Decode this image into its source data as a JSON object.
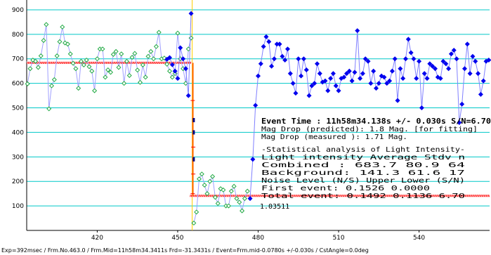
{
  "chart_data": {
    "type": "scatter",
    "title": "",
    "xlabel": "",
    "ylabel": "",
    "xlim": [
      393.7,
      566.3
    ],
    "ylim": [
      0,
      940
    ],
    "x_ticks": [
      420,
      450,
      480,
      510,
      540
    ],
    "y_ticks": [
      100,
      200,
      300,
      400,
      500,
      600,
      700,
      800,
      900
    ],
    "grid": true,
    "event_x": 455.4,
    "colors": {
      "green": "#22aa44",
      "green_line": "#a0a0ff",
      "blue": "#0000ee",
      "blue_line": "#8080ff",
      "grid": "#00c8c8",
      "fit": "#ff4040",
      "event_line": "#ffcc00",
      "drop": "#ff6600"
    },
    "series": [
      {
        "marker": "green-diamond",
        "x": [
          394,
          395,
          396,
          397,
          398,
          399,
          400,
          401,
          402,
          403,
          404,
          405,
          406,
          407,
          408,
          409,
          410,
          411,
          412,
          413,
          414,
          415,
          416,
          417,
          418,
          419,
          420,
          421,
          422,
          423,
          424,
          425,
          426,
          427,
          428,
          429,
          430,
          431,
          432,
          433,
          434,
          435,
          436,
          437,
          438,
          439,
          440,
          441,
          442,
          443,
          444,
          445,
          446,
          447,
          448,
          449,
          450,
          451,
          452,
          453,
          454,
          455
        ],
        "y": [
          598,
          660,
          695,
          690,
          665,
          712,
          775,
          840,
          496,
          590,
          615,
          712,
          770,
          830,
          765,
          760,
          720,
          682,
          660,
          580,
          690,
          675,
          695,
          668,
          650,
          570,
          700,
          740,
          740,
          625,
          655,
          645,
          718,
          730,
          665,
          720,
          600,
          690,
          632,
          706,
          722,
          654,
          604,
          675,
          625,
          710,
          730,
          700,
          750,
          808,
          700,
          703,
          678,
          650,
          625,
          640,
          805,
          700,
          660,
          600,
          740,
          785
        ]
      },
      {
        "marker": "blue-diamond",
        "x": [
          446,
          447,
          448,
          449,
          450,
          451,
          452,
          453,
          454,
          455
        ],
        "y": [
          698,
          705,
          676,
          650,
          620,
          745,
          700,
          660,
          550,
          885
        ]
      },
      {
        "marker": "green-diamond",
        "x": [
          456,
          457,
          458,
          459,
          460,
          461,
          462,
          463,
          464,
          465,
          466,
          467,
          468,
          469,
          470,
          471,
          472,
          473,
          474,
          475,
          476
        ],
        "y": [
          30,
          75,
          210,
          230,
          185,
          150,
          200,
          220,
          135,
          110,
          170,
          165,
          100,
          100,
          160,
          180,
          130,
          115,
          80,
          130,
          160
        ]
      },
      {
        "marker": "blue-diamond",
        "x": [
          477,
          478,
          479,
          480,
          481,
          482,
          483,
          484,
          485,
          486,
          487,
          488,
          489,
          490,
          491,
          492,
          493,
          494,
          495,
          496,
          497,
          498,
          499,
          500,
          501,
          502,
          503,
          504,
          505,
          506,
          507,
          508,
          509,
          510,
          511,
          512,
          513,
          514,
          515,
          516,
          517,
          518,
          519,
          520,
          521,
          522,
          523,
          524,
          525,
          526,
          527,
          528,
          529,
          530,
          531,
          532,
          533,
          534,
          535,
          536,
          537,
          538,
          539,
          540,
          541,
          542,
          543,
          544,
          545,
          546,
          547,
          548,
          549,
          550,
          551,
          552,
          553,
          554,
          555,
          556,
          557,
          558,
          559,
          560,
          561,
          562,
          563,
          564,
          565,
          566
        ],
        "y": [
          130,
          290,
          510,
          630,
          680,
          750,
          790,
          770,
          670,
          700,
          760,
          760,
          710,
          695,
          740,
          640,
          600,
          560,
          700,
          630,
          700,
          655,
          550,
          590,
          600,
          680,
          640,
          605,
          610,
          570,
          620,
          640,
          590,
          570,
          620,
          625,
          640,
          650,
          610,
          645,
          815,
          620,
          640,
          700,
          690,
          600,
          650,
          580,
          600,
          630,
          625,
          600,
          610,
          650,
          700,
          530,
          660,
          620,
          700,
          780,
          725,
          700,
          620,
          690,
          500,
          640,
          620,
          680,
          670,
          660,
          625,
          620,
          690,
          680,
          660,
          720,
          735,
          700,
          440,
          515,
          660,
          760,
          640,
          710,
          690,
          640,
          555,
          610,
          690,
          695
        ]
      }
    ],
    "fit_levels": {
      "combined": 683.7,
      "background": 141.3,
      "pre_event_end": 455,
      "post_event_start": 456
    },
    "red_drop_markers": [
      {
        "x": 455.6,
        "y": 530
      },
      {
        "x": 455.8,
        "y": 340
      },
      {
        "x": 455.8,
        "y": 230
      },
      {
        "x": 455.6,
        "y": 150
      }
    ],
    "blue_drop_markers": [
      {
        "x": 456.0,
        "y": 450
      },
      {
        "x": 456.0,
        "y": 400
      },
      {
        "x": 456.0,
        "y": 290
      }
    ]
  },
  "info": {
    "event_time": "Event Time : 11h58m34.138s  +/- 0.030s  S/N=6.70",
    "mag_pred": "Mag Drop (predicted):  1.8   Mag. [for fitting]",
    "mag_meas": "Mag Drop (measured ):  1.71  Mag.",
    "stat_title": "-Statistical analysis of Light Intensity-",
    "hdr": "Light intensity     Average    Stdv      n",
    "combined": " Combined  :         683.7      80.9     64",
    "background": " Background:         141.3      61.6     17",
    "noise_hdr": "Noise Level (N/S)   Upper     Lower    (S/N)",
    "first": " First event:       0.1526    0.0000",
    "total": " Total event:       0.1492    0.1136    6.70",
    "ratio": "1.03511"
  },
  "footer": "Exp=392msec / Frm.No.463.0 / Frm.Mid=11h58m34.3411s  Frd=-31.3431s / Event=Frm.mid-0.0780s +/-0.030s / CstAngle=0.0deg"
}
